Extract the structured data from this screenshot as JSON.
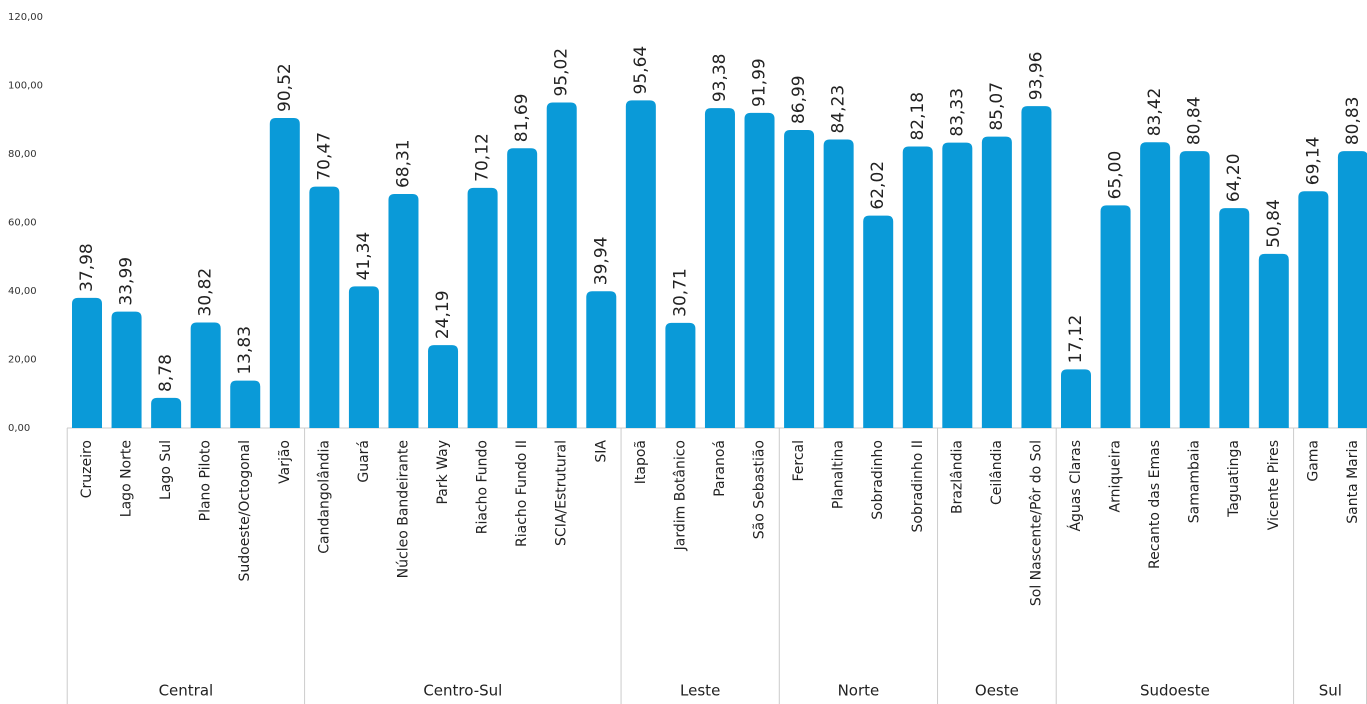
{
  "chart_data": {
    "type": "bar",
    "color": "#0a9ad8",
    "ylim": [
      0,
      120
    ],
    "yticks": [
      {
        "value": 0,
        "label": "0,00"
      },
      {
        "value": 20,
        "label": "20,00"
      },
      {
        "value": 40,
        "label": "40,00"
      },
      {
        "value": 60,
        "label": "60,00"
      },
      {
        "value": 80,
        "label": "80,00"
      },
      {
        "value": 100,
        "label": "100,00"
      },
      {
        "value": 120,
        "label": "120,00"
      }
    ],
    "groups": [
      {
        "name": "Central",
        "categories": [
          "Cruzeiro",
          "Lago Norte",
          "Lago Sul",
          "Plano Piloto",
          "Sudoeste/Octogonal",
          "Varjão"
        ],
        "values": [
          37.98,
          33.99,
          8.78,
          30.82,
          13.83,
          90.52
        ],
        "value_labels": [
          "37,98",
          "33,99",
          "8,78",
          "30,82",
          "13,83",
          "90,52"
        ]
      },
      {
        "name": "Centro-Sul",
        "categories": [
          "Candangolândia",
          "Guará",
          "Núcleo Bandeirante",
          "Park Way",
          "Riacho Fundo",
          "Riacho Fundo II",
          "SCIA/Estrutural",
          "SIA"
        ],
        "values": [
          70.47,
          41.34,
          68.31,
          24.19,
          70.12,
          81.69,
          95.02,
          39.94
        ],
        "value_labels": [
          "70,47",
          "41,34",
          "68,31",
          "24,19",
          "70,12",
          "81,69",
          "95,02",
          "39,94"
        ]
      },
      {
        "name": "Leste",
        "categories": [
          "Itapoã",
          "Jardim Botânico",
          "Paranoá",
          "São Sebastião"
        ],
        "values": [
          95.64,
          30.71,
          93.38,
          91.99
        ],
        "value_labels": [
          "95,64",
          "30,71",
          "93,38",
          "91,99"
        ]
      },
      {
        "name": "Norte",
        "categories": [
          "Fercal",
          "Planaltina",
          "Sobradinho",
          "Sobradinho II"
        ],
        "values": [
          86.99,
          84.23,
          62.02,
          82.18
        ],
        "value_labels": [
          "86,99",
          "84,23",
          "62,02",
          "82,18"
        ]
      },
      {
        "name": "Oeste",
        "categories": [
          "Brazlândia",
          "Ceilândia",
          "Sol Nascente/Pôr do Sol"
        ],
        "values": [
          83.33,
          85.07,
          93.96
        ],
        "value_labels": [
          "83,33",
          "85,07",
          "93,96"
        ]
      },
      {
        "name": "Sudoeste",
        "categories": [
          "Águas Claras",
          "Arniqueira",
          "Recanto das Emas",
          "Samambaia",
          "Taguatinga",
          "Vicente Pires"
        ],
        "values": [
          17.12,
          65.0,
          83.42,
          80.84,
          64.2,
          50.84
        ],
        "value_labels": [
          "17,12",
          "65,00",
          "83,42",
          "80,84",
          "64,20",
          "50,84"
        ]
      },
      {
        "name": "Sul",
        "categories": [
          "Gama",
          "Santa Maria"
        ],
        "values": [
          69.14,
          80.83
        ],
        "value_labels": [
          "69,14",
          "80,83"
        ]
      }
    ]
  }
}
